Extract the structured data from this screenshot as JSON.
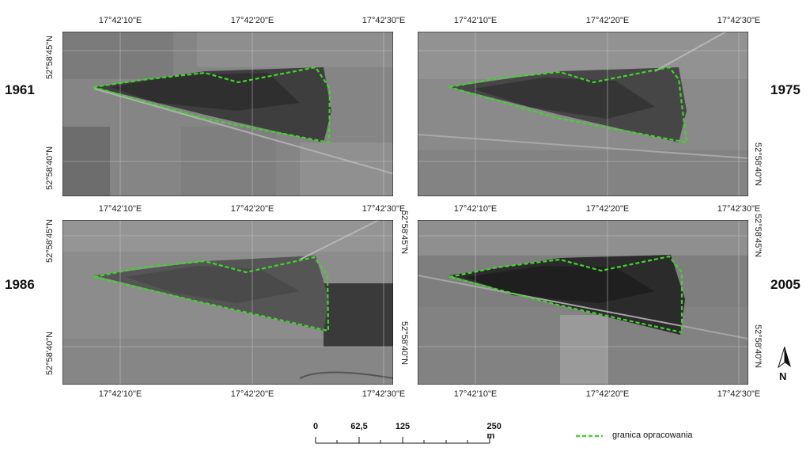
{
  "panels": [
    {
      "year": "1961",
      "lon_labels_top": [
        "17°42'10\"E",
        "17°42'20\"E",
        "17°42'30\"E"
      ],
      "lat_labels_left": [
        "52°58'45\"N",
        "52°58'40\"N"
      ]
    },
    {
      "year": "1975",
      "lon_labels_top": [
        "17°42'10\"E",
        "17°42'20\"E",
        "17°42'30\"E"
      ],
      "lat_labels_right": [
        "52°58'40\"N"
      ]
    },
    {
      "year": "1986",
      "lon_labels_top": [
        "17°42'10\"E",
        "17°42'20\"E",
        "17°42'30\"E"
      ],
      "lon_labels_bottom": [
        "17°42'10\"E",
        "17°42'20\"E",
        "17°42'30\"E"
      ],
      "lat_labels_left": [
        "52°58'45\"N",
        "52°58'40\"N"
      ],
      "lat_labels_right": [
        "52°58'45\"N",
        "52°58'40\"N"
      ]
    },
    {
      "year": "2005",
      "lon_labels_top": [
        "17°42'10\"E",
        "17°42'20\"E",
        "17°42'30\"E"
      ],
      "lon_labels_bottom": [
        "17°42'10\"E",
        "17°42'20\"E",
        "17°42'30\"E"
      ],
      "lat_labels_right": [
        "52°58'45\"N",
        "52°58'40\"N"
      ]
    }
  ],
  "scalebar": {
    "labels": [
      "0",
      "62,5",
      "125",
      "250 m"
    ]
  },
  "legend": {
    "label": "granica opracowania",
    "color": "#3fd62a"
  },
  "north_arrow": {
    "icon": "north-arrow-icon",
    "letter": "N"
  },
  "colors": {
    "boundary": "#3fd62a",
    "grid": "#cfcfcf"
  }
}
